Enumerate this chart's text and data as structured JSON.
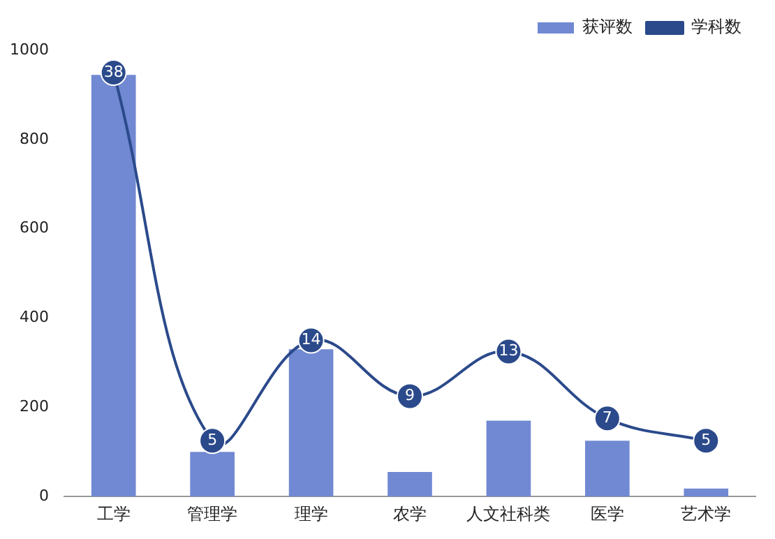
{
  "chart_data": {
    "type": "bar",
    "categories": [
      "工学",
      "管理学",
      "理学",
      "农学",
      "人文社科类",
      "医学",
      "艺术学"
    ],
    "series": [
      {
        "name": "获评数",
        "color": "#7189d2",
        "values": [
          945,
          100,
          330,
          55,
          170,
          125,
          18
        ]
      },
      {
        "name": "学科数",
        "type": "line",
        "axis": "y2",
        "color": "#2b4a8b",
        "values": [
          38,
          5,
          14,
          9,
          13,
          7,
          5
        ],
        "value_labels": [
          "38",
          "5",
          "14",
          "9",
          "13",
          "7",
          "5"
        ]
      }
    ],
    "ylim": [
      0,
      1000
    ],
    "yticks": [
      0,
      200,
      400,
      600,
      800,
      1000
    ],
    "grid": false,
    "legend": "top right",
    "marker": "circle",
    "line_style": "solid"
  }
}
